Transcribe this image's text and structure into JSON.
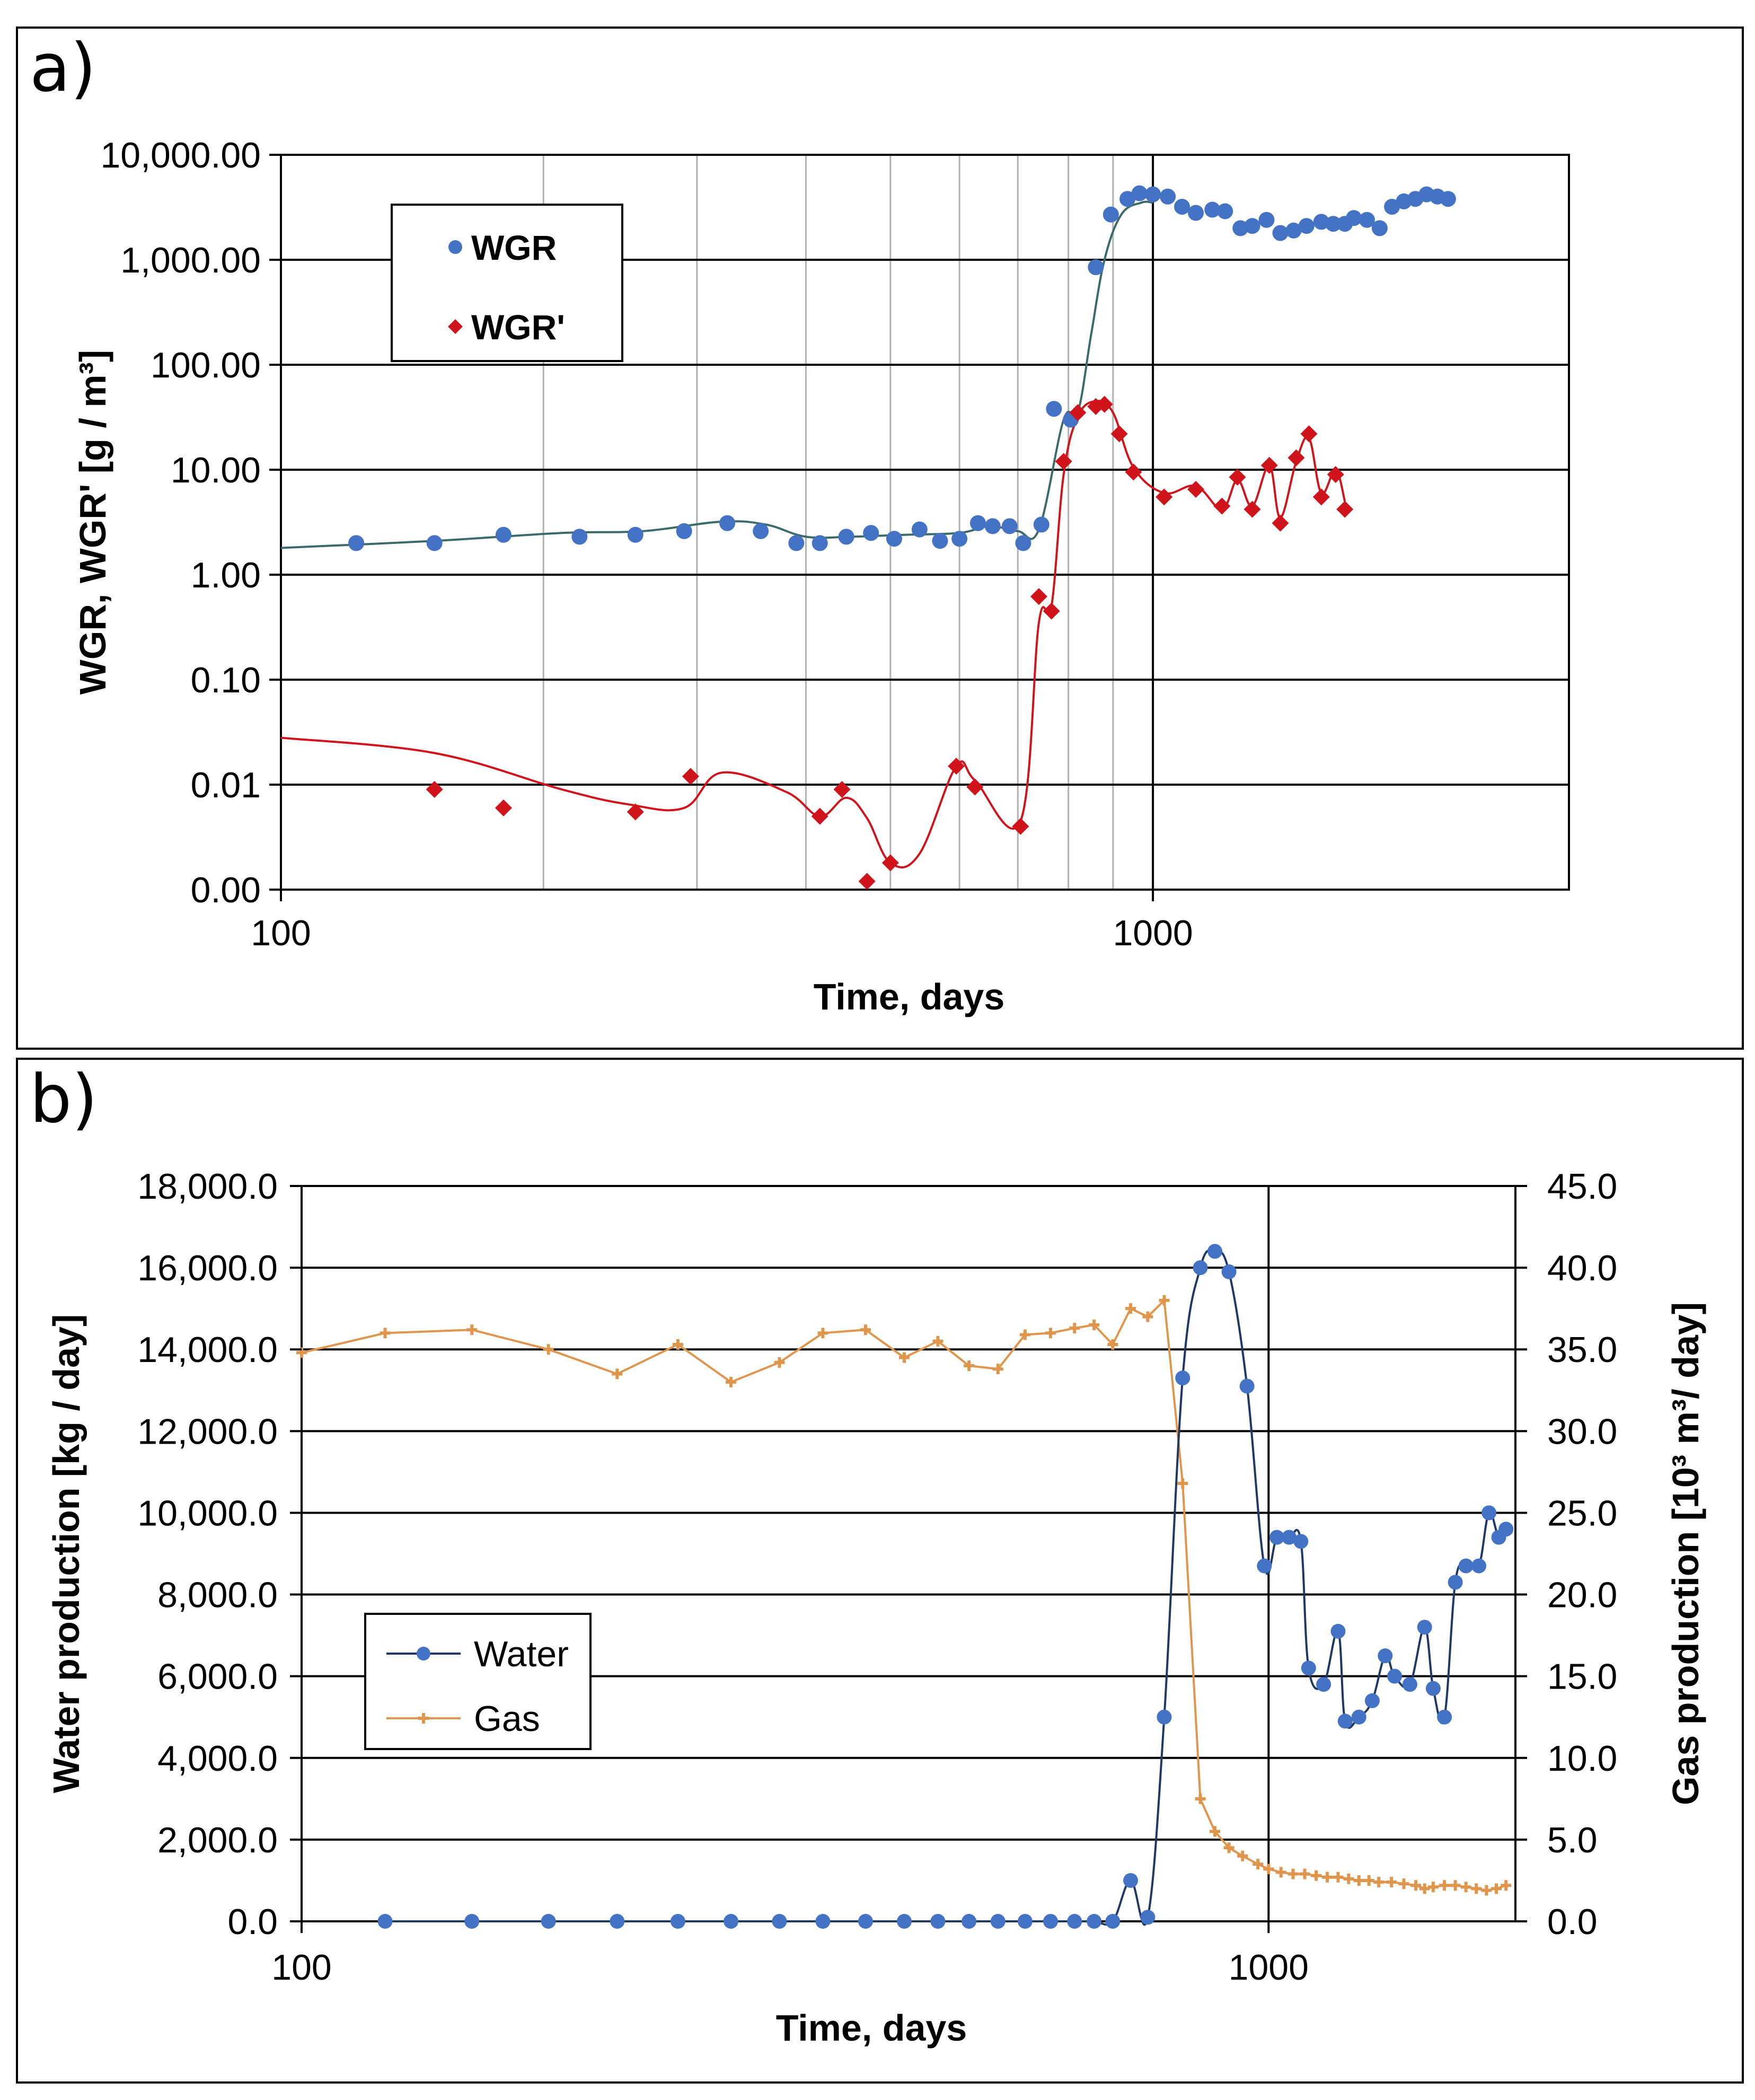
{
  "panels": {
    "a": {
      "label": "a)"
    },
    "b": {
      "label": "b)"
    }
  },
  "colors": {
    "wgr": "#4472C4",
    "wgr_prime": "#D0141B",
    "water": "#4472C4",
    "water_line": "#1F3864",
    "gas": "#E0954C"
  },
  "chart_data": [
    {
      "type": "scatter",
      "panel": "a",
      "title": "",
      "xlabel": "Time, days",
      "ylabel": "WGR, WGR' [g / m³]",
      "xscale": "log",
      "yscale": "log",
      "xlim": [
        100,
        3000
      ],
      "ylim": [
        0.001,
        10000
      ],
      "xticks": [
        100,
        1000
      ],
      "xtick_labels": [
        "100",
        "1000"
      ],
      "yticks": [
        0.001,
        0.01,
        0.1,
        1,
        10,
        100,
        1000,
        10000
      ],
      "ytick_labels": [
        "0.00",
        "0.01",
        "0.10",
        "1.00",
        "10.00",
        "100.00",
        "1,000.00",
        "10,000.00"
      ],
      "x_gridlines": [
        200,
        300,
        400,
        500,
        600,
        700,
        800,
        900,
        1000
      ],
      "legend": {
        "position": "top-left",
        "entries": [
          "WGR",
          "WGR'"
        ]
      },
      "series": [
        {
          "name": "WGR",
          "marker": "circle",
          "points": [
            [
              122,
              2.0
            ],
            [
              150,
              2.0
            ],
            [
              180,
              2.4
            ],
            [
              220,
              2.3
            ],
            [
              255,
              2.4
            ],
            [
              290,
              2.6
            ],
            [
              325,
              3.1
            ],
            [
              355,
              2.6
            ],
            [
              390,
              2.0
            ],
            [
              415,
              2.0
            ],
            [
              445,
              2.3
            ],
            [
              475,
              2.5
            ],
            [
              505,
              2.2
            ],
            [
              540,
              2.7
            ],
            [
              570,
              2.1
            ],
            [
              600,
              2.2
            ],
            [
              630,
              3.1
            ],
            [
              655,
              2.9
            ],
            [
              685,
              2.9
            ],
            [
              710,
              2.0
            ],
            [
              745,
              3.0
            ],
            [
              770,
              38
            ],
            [
              805,
              30
            ],
            [
              860,
              850
            ],
            [
              895,
              2700
            ],
            [
              935,
              3800
            ],
            [
              965,
              4300
            ],
            [
              1000,
              4200
            ],
            [
              1040,
              4000
            ],
            [
              1080,
              3200
            ],
            [
              1120,
              2800
            ],
            [
              1170,
              3000
            ],
            [
              1210,
              2900
            ],
            [
              1260,
              2000
            ],
            [
              1300,
              2100
            ],
            [
              1350,
              2400
            ],
            [
              1400,
              1800
            ],
            [
              1450,
              1900
            ],
            [
              1500,
              2100
            ],
            [
              1560,
              2300
            ],
            [
              1610,
              2200
            ],
            [
              1660,
              2200
            ],
            [
              1700,
              2500
            ],
            [
              1760,
              2400
            ],
            [
              1820,
              2000
            ],
            [
              1880,
              3200
            ],
            [
              1940,
              3600
            ],
            [
              2000,
              3800
            ],
            [
              2060,
              4200
            ],
            [
              2120,
              4000
            ],
            [
              2180,
              3800
            ]
          ],
          "trend": [
            [
              100,
              1.8
            ],
            [
              150,
              2.1
            ],
            [
              210,
              2.5
            ],
            [
              260,
              2.6
            ],
            [
              320,
              3.2
            ],
            [
              360,
              3.0
            ],
            [
              400,
              2.3
            ],
            [
              450,
              2.3
            ],
            [
              520,
              2.4
            ],
            [
              600,
              2.5
            ],
            [
              650,
              2.9
            ],
            [
              700,
              2.6
            ],
            [
              740,
              2.7
            ],
            [
              790,
              30
            ],
            [
              820,
              35
            ],
            [
              850,
              200
            ],
            [
              880,
              1000
            ],
            [
              920,
              2700
            ],
            [
              970,
              3500
            ],
            [
              1000,
              3500
            ]
          ]
        },
        {
          "name": "WGR'",
          "marker": "diamond",
          "points": [
            [
              150,
              0.009
            ],
            [
              180,
              0.006
            ],
            [
              255,
              0.0055
            ],
            [
              295,
              0.012
            ],
            [
              415,
              0.005
            ],
            [
              440,
              0.009
            ],
            [
              470,
              0.0012
            ],
            [
              500,
              0.0018
            ],
            [
              595,
              0.015
            ],
            [
              625,
              0.0095
            ],
            [
              705,
              0.004
            ],
            [
              740,
              0.62
            ],
            [
              765,
              0.45
            ],
            [
              790,
              12
            ],
            [
              820,
              35
            ],
            [
              860,
              40
            ],
            [
              880,
              42
            ],
            [
              915,
              22
            ],
            [
              950,
              9.5
            ],
            [
              1030,
              5.5
            ],
            [
              1120,
              6.5
            ],
            [
              1200,
              4.5
            ],
            [
              1250,
              8.5
            ],
            [
              1300,
              4.2
            ],
            [
              1360,
              11
            ],
            [
              1400,
              3.1
            ],
            [
              1460,
              13
            ],
            [
              1510,
              22
            ],
            [
              1560,
              5.5
            ],
            [
              1620,
              9.0
            ],
            [
              1660,
              4.2
            ]
          ],
          "trend": [
            [
              100,
              0.028
            ],
            [
              150,
              0.02
            ],
            [
              210,
              0.009
            ],
            [
              250,
              0.0065
            ],
            [
              290,
              0.006
            ],
            [
              320,
              0.013
            ],
            [
              380,
              0.0085
            ],
            [
              415,
              0.005
            ],
            [
              445,
              0.0075
            ],
            [
              470,
              0.0048
            ],
            [
              500,
              0.0018
            ],
            [
              540,
              0.0022
            ],
            [
              595,
              0.015
            ],
            [
              625,
              0.011
            ],
            [
              705,
              0.0045
            ],
            [
              740,
              0.35
            ],
            [
              765,
              0.5
            ],
            [
              790,
              9
            ],
            [
              820,
              32
            ],
            [
              860,
              45
            ],
            [
              900,
              35
            ],
            [
              950,
              10.5
            ],
            [
              1030,
              6
            ],
            [
              1120,
              7
            ],
            [
              1200,
              4.2
            ],
            [
              1250,
              8
            ],
            [
              1300,
              4.5
            ],
            [
              1360,
              11
            ],
            [
              1400,
              3.5
            ],
            [
              1460,
              12
            ],
            [
              1510,
              20
            ],
            [
              1560,
              6
            ],
            [
              1620,
              10
            ],
            [
              1660,
              5
            ]
          ]
        }
      ]
    },
    {
      "type": "line",
      "panel": "b",
      "title": "",
      "xlabel": "Time, days",
      "ylabel": "Water production [kg / day]",
      "y2label": "Gas production [10³ m³/ day]",
      "xscale": "log",
      "xlim": [
        100,
        1800
      ],
      "ylim": [
        0,
        18000
      ],
      "y2lim": [
        0,
        45
      ],
      "xticks": [
        100,
        1000
      ],
      "xtick_labels": [
        "100",
        "1000"
      ],
      "yticks": [
        0,
        2000,
        4000,
        6000,
        8000,
        10000,
        12000,
        14000,
        16000,
        18000
      ],
      "ytick_labels": [
        "0.0",
        "2,000.0",
        "4,000.0",
        "6,000.0",
        "8,000.0",
        "10,000.0",
        "12,000.0",
        "14,000.0",
        "16,000.0",
        "18,000.0"
      ],
      "y2ticks": [
        0,
        5,
        10,
        15,
        20,
        25,
        30,
        35,
        40,
        45
      ],
      "y2tick_labels": [
        "0.0",
        "5.0",
        "10.0",
        "15.0",
        "20.0",
        "25.0",
        "30.0",
        "35.0",
        "40.0",
        "45.0"
      ],
      "legend": {
        "position": "center-left",
        "entries": [
          "Water",
          "Gas"
        ]
      },
      "series": [
        {
          "name": "Water",
          "axis": "left",
          "marker": "circle",
          "points": [
            [
              122,
              0
            ],
            [
              150,
              0
            ],
            [
              180,
              0
            ],
            [
              212,
              0
            ],
            [
              245,
              0
            ],
            [
              278,
              0
            ],
            [
              312,
              0
            ],
            [
              346,
              0
            ],
            [
              383,
              0
            ],
            [
              420,
              0
            ],
            [
              455,
              0
            ],
            [
              490,
              0
            ],
            [
              525,
              0
            ],
            [
              560,
              0
            ],
            [
              595,
              0
            ],
            [
              630,
              0
            ],
            [
              660,
              0
            ],
            [
              690,
              0
            ],
            [
              720,
              1000
            ],
            [
              750,
              100
            ],
            [
              780,
              5000
            ],
            [
              815,
              13300
            ],
            [
              850,
              16000
            ],
            [
              880,
              16400
            ],
            [
              910,
              15900
            ],
            [
              950,
              13100
            ],
            [
              990,
              8700
            ],
            [
              1020,
              9400
            ],
            [
              1050,
              9400
            ],
            [
              1080,
              9300
            ],
            [
              1100,
              6200
            ],
            [
              1140,
              5800
            ],
            [
              1180,
              7100
            ],
            [
              1200,
              4900
            ],
            [
              1240,
              5000
            ],
            [
              1280,
              5400
            ],
            [
              1320,
              6500
            ],
            [
              1350,
              6000
            ],
            [
              1400,
              5800
            ],
            [
              1450,
              7200
            ],
            [
              1480,
              5700
            ],
            [
              1520,
              5000
            ],
            [
              1560,
              8300
            ],
            [
              1600,
              8700
            ],
            [
              1650,
              8700
            ],
            [
              1690,
              10000
            ],
            [
              1730,
              9400
            ],
            [
              1760,
              9600
            ]
          ]
        },
        {
          "name": "Gas",
          "axis": "right",
          "marker": "plus",
          "points": [
            [
              100,
              34.8
            ],
            [
              122,
              36.0
            ],
            [
              150,
              36.2
            ],
            [
              180,
              35.0
            ],
            [
              212,
              33.5
            ],
            [
              245,
              35.3
            ],
            [
              278,
              33.0
            ],
            [
              312,
              34.2
            ],
            [
              346,
              36.0
            ],
            [
              383,
              36.2
            ],
            [
              420,
              34.5
            ],
            [
              455,
              35.5
            ],
            [
              490,
              34.0
            ],
            [
              525,
              33.8
            ],
            [
              560,
              35.9
            ],
            [
              595,
              36.0
            ],
            [
              630,
              36.3
            ],
            [
              660,
              36.5
            ],
            [
              690,
              35.3
            ],
            [
              720,
              37.5
            ],
            [
              750,
              37.0
            ],
            [
              780,
              38.0
            ],
            [
              815,
              26.8
            ],
            [
              850,
              7.5
            ],
            [
              880,
              5.5
            ],
            [
              910,
              4.5
            ],
            [
              940,
              4.0
            ],
            [
              975,
              3.5
            ],
            [
              1000,
              3.2
            ],
            [
              1030,
              3.0
            ],
            [
              1060,
              2.9
            ],
            [
              1090,
              2.9
            ],
            [
              1120,
              2.8
            ],
            [
              1150,
              2.7
            ],
            [
              1180,
              2.7
            ],
            [
              1210,
              2.6
            ],
            [
              1240,
              2.5
            ],
            [
              1270,
              2.5
            ],
            [
              1300,
              2.4
            ],
            [
              1340,
              2.4
            ],
            [
              1380,
              2.3
            ],
            [
              1420,
              2.2
            ],
            [
              1450,
              2.0
            ],
            [
              1480,
              2.1
            ],
            [
              1520,
              2.2
            ],
            [
              1560,
              2.2
            ],
            [
              1600,
              2.1
            ],
            [
              1640,
              2.0
            ],
            [
              1680,
              1.9
            ],
            [
              1720,
              2.0
            ],
            [
              1760,
              2.2
            ]
          ]
        }
      ]
    }
  ]
}
